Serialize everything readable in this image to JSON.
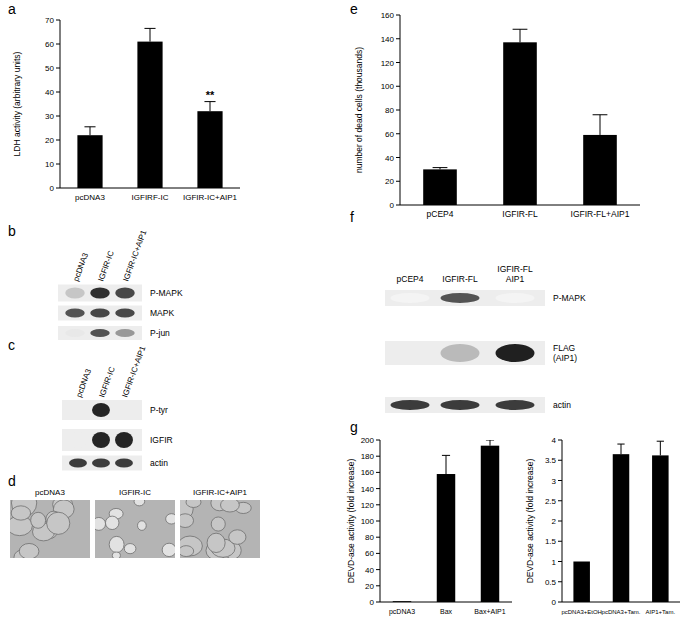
{
  "chart_data": [
    {
      "type": "bar",
      "title": "a",
      "ylabel": "LDH activity (arbitrary units)",
      "categories": [
        "pcDNA3",
        "IGFIRF-IC",
        "IGFIR-IC+AIP1"
      ],
      "values": [
        22,
        61,
        32
      ],
      "errors": [
        3.5,
        5.5,
        4
      ],
      "color": "#000000",
      "ylim": [
        0,
        70
      ],
      "yticks": [
        0,
        10,
        20,
        30,
        40,
        50,
        60,
        70
      ],
      "grid": false,
      "annotations": [
        {
          "text": "**",
          "category": "IGFIR-IC+AIP1"
        }
      ]
    },
    {
      "type": "bar",
      "title": "e",
      "ylabel": "number of dead cells (thousands)",
      "categories": [
        "pCEP4",
        "IGFIR-FL",
        "IGFIR-FL+AIP1"
      ],
      "values": [
        30,
        137,
        59
      ],
      "errors": [
        1.5,
        11,
        17
      ],
      "color": "#000000",
      "ylim": [
        0,
        160
      ],
      "yticks": [
        0,
        20,
        40,
        60,
        80,
        100,
        120,
        140,
        160
      ],
      "grid": false
    },
    {
      "type": "bar",
      "title": "g",
      "ylabel": "DEVD-ase activity (fold increase)",
      "categories": [
        "pcDNA3",
        "Bax",
        "Bax+AIP1"
      ],
      "values": [
        1,
        158,
        193
      ],
      "errors": [
        null,
        23,
        7
      ],
      "color": "#000000",
      "ylim": [
        0,
        200
      ],
      "yticks": [
        0,
        20,
        40,
        60,
        80,
        100,
        120,
        140,
        160,
        180,
        200
      ],
      "grid": false
    },
    {
      "type": "bar",
      "ylabel": "DEVD-ase activity (fold increase)",
      "categories": [
        "pcDNA3+EtOH",
        "pcDNA3+Tam.",
        "AIP1+Tam."
      ],
      "values": [
        1,
        3.65,
        3.62
      ],
      "errors": [
        null,
        0.25,
        0.35
      ],
      "color": "#000000",
      "ylim": [
        0,
        4
      ],
      "yticks": [
        0,
        0.5,
        1,
        1.5,
        2,
        2.5,
        3,
        3.5,
        4
      ],
      "grid": false
    }
  ],
  "blots": [
    {
      "title": "b",
      "lanes": [
        [
          "pcDNA3"
        ],
        [
          "IGFIR-IC"
        ],
        [
          "IGFIR-IC+AIP1"
        ]
      ],
      "rows": [
        [
          "P-MAPK"
        ],
        [
          "MAPK"
        ],
        [
          "P-jun"
        ]
      ]
    },
    {
      "title": "c",
      "lanes": [
        [
          "pcDNA3"
        ],
        [
          "IGFIR-IC"
        ],
        [
          "IGFIR-IC+AIP1"
        ]
      ],
      "rows": [
        [
          "P-tyr"
        ],
        [
          "IGFIR"
        ],
        [
          "actin"
        ]
      ]
    },
    {
      "title": "f",
      "lanes": [
        [
          "pCEP4"
        ],
        [
          "IGFIR-FL"
        ],
        [
          "IGFIR-FL",
          "AIP1"
        ]
      ],
      "rows": [
        [
          "P-MAPK"
        ],
        [
          "FLAG",
          "(AIP1)"
        ],
        [
          "actin"
        ]
      ]
    }
  ],
  "micrographs": {
    "title": "d",
    "labels": [
      "pcDNA3",
      "IGFIR-IC",
      "IGFIR-IC+AIP1"
    ]
  }
}
